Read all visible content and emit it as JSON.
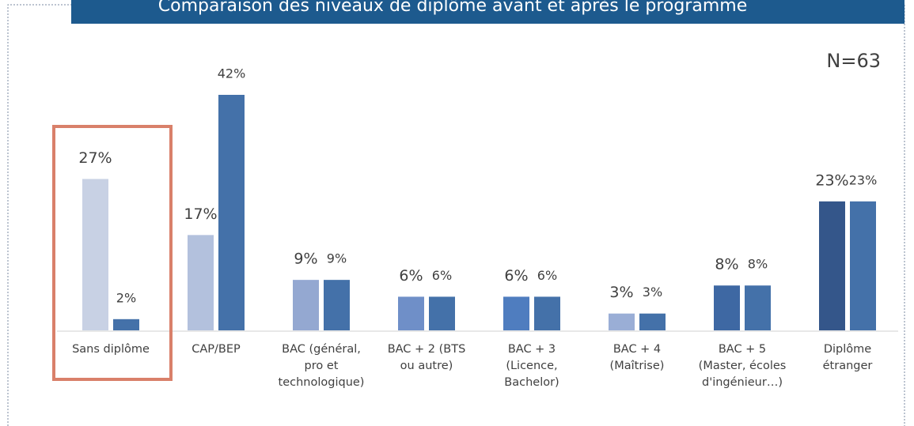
{
  "chart_data": {
    "type": "bar",
    "title": "Comparaison des niveaux de diplôme avant et après le programme",
    "annotation": "N=63",
    "categories": [
      "Sans diplôme",
      "CAP/BEP",
      "BAC (général, pro et technologique)",
      "BAC + 2 (BTS ou autre)",
      "BAC + 3 (Licence, Bachelor)",
      "BAC + 4 (Maîtrise)",
      "BAC + 5 (Master, écoles d'ingénieur…)",
      "Diplôme étranger"
    ],
    "series": [
      {
        "colors": [
          "#c8d1e4",
          "#b3c1dd",
          "#94a8d1",
          "#6f8fc8",
          "#4f7dbf",
          "#9aaed6",
          "#3e68a3",
          "#34568a"
        ],
        "values": [
          27,
          17,
          9,
          6,
          6,
          3,
          8,
          23
        ],
        "value_labels": [
          "27%",
          "17%",
          "9%",
          "6%",
          "6%",
          "3%",
          "8%",
          "23%"
        ]
      },
      {
        "color": "#4471a9",
        "values": [
          2,
          42,
          9,
          6,
          6,
          3,
          8,
          23
        ],
        "value_labels": [
          "2%",
          "42%",
          "9%",
          "6%",
          "6%",
          "3%",
          "8%",
          "23%"
        ]
      }
    ]
  }
}
